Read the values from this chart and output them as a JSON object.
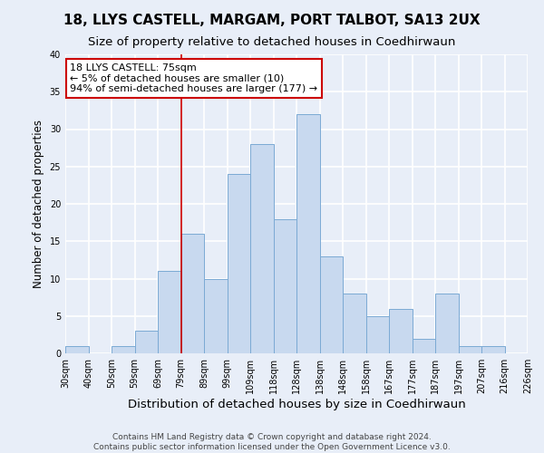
{
  "title": "18, LLYS CASTELL, MARGAM, PORT TALBOT, SA13 2UX",
  "subtitle": "Size of property relative to detached houses in Coedhirwaun",
  "xlabel": "Distribution of detached houses by size in Coedhirwaun",
  "ylabel": "Number of detached properties",
  "bar_values": [
    1,
    0,
    1,
    3,
    11,
    16,
    10,
    24,
    28,
    18,
    32,
    13,
    8,
    5,
    6,
    2,
    8,
    1,
    1,
    0
  ],
  "x_tick_labels": [
    "30sqm",
    "40sqm",
    "50sqm",
    "59sqm",
    "69sqm",
    "79sqm",
    "89sqm",
    "99sqm",
    "109sqm",
    "118sqm",
    "128sqm",
    "138sqm",
    "148sqm",
    "158sqm",
    "167sqm",
    "177sqm",
    "187sqm",
    "197sqm",
    "207sqm",
    "216sqm",
    "226sqm"
  ],
  "bar_color": "#c8d9ef",
  "bar_edge_color": "#7baad4",
  "vline_color": "#cc0000",
  "annotation_title": "18 LLYS CASTELL: 75sqm",
  "annotation_line1": "← 5% of detached houses are smaller (10)",
  "annotation_line2": "94% of semi-detached houses are larger (177) →",
  "annotation_box_color": "#ffffff",
  "annotation_box_edge": "#cc0000",
  "ylim": [
    0,
    40
  ],
  "yticks": [
    0,
    5,
    10,
    15,
    20,
    25,
    30,
    35,
    40
  ],
  "footer1": "Contains HM Land Registry data © Crown copyright and database right 2024.",
  "footer2": "Contains public sector information licensed under the Open Government Licence v3.0.",
  "bg_color": "#e8eef8",
  "plot_bg_color": "#e8eef8",
  "grid_color": "#ffffff",
  "title_fontsize": 11,
  "subtitle_fontsize": 9.5,
  "xlabel_fontsize": 9.5,
  "ylabel_fontsize": 8.5,
  "tick_fontsize": 7,
  "footer_fontsize": 6.5,
  "annotation_fontsize": 8
}
